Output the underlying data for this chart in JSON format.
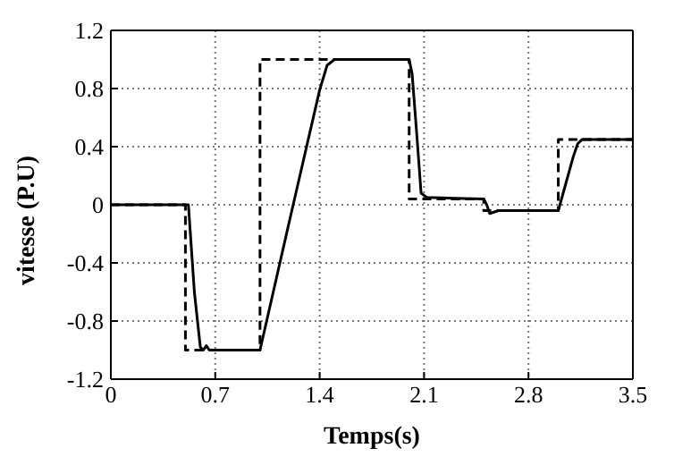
{
  "chart_data": {
    "type": "line",
    "xlabel": "Temps(s)",
    "ylabel": "vitesse (P.U)",
    "xlim": [
      0,
      3.5
    ],
    "xticks": [
      0,
      0.7,
      1.4,
      2.1,
      2.8,
      3.5
    ],
    "ylim": [
      -1.2,
      1.2
    ],
    "yticks": [
      -1.2,
      -0.8,
      -0.4,
      0,
      0.4,
      0.8,
      1.2
    ],
    "grid": true,
    "marker": "none",
    "series": [
      {
        "color": "#000000",
        "line_style": "dashed",
        "x": [
          0,
          0.5,
          0.5,
          1.0,
          1.0,
          2.0,
          2.0,
          2.5,
          2.5,
          3.0,
          3.0,
          3.5
        ],
        "values": [
          0,
          0,
          -1,
          -1,
          1,
          1,
          0.04,
          0.04,
          -0.04,
          -0.04,
          0.45,
          0.45
        ]
      },
      {
        "color": "#000000",
        "line_style": "solid",
        "x": [
          0,
          0.52,
          0.56,
          0.6,
          0.62,
          0.64,
          0.66,
          1.0,
          1.2,
          1.4,
          1.45,
          1.5,
          2.0,
          2.02,
          2.05,
          2.08,
          2.12,
          2.5,
          2.52,
          2.54,
          2.6,
          3.0,
          3.1,
          3.13,
          3.16,
          3.5
        ],
        "values": [
          0,
          0,
          -0.6,
          -0.98,
          -1,
          -0.97,
          -1,
          -1,
          -0.1,
          0.79,
          0.96,
          1,
          1,
          0.9,
          0.5,
          0.08,
          0.05,
          0.04,
          0,
          -0.06,
          -0.04,
          -0.04,
          0.33,
          0.42,
          0.45,
          0.45
        ]
      }
    ]
  }
}
